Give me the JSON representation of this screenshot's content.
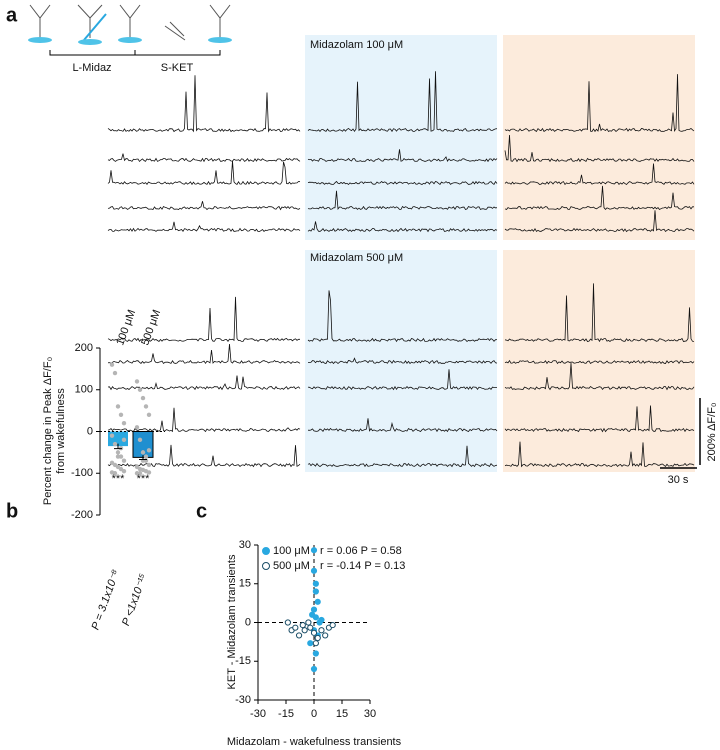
{
  "panel_labels": [
    "a",
    "b",
    "c"
  ],
  "panel_a": {
    "protocol": [
      "L-Midaz",
      "S-KET"
    ],
    "conditions": [
      "Midazolam 100 μM",
      "Midazolam 500 μM"
    ],
    "scale_y": "200% ΔF/F₀",
    "scale_x": "30 s"
  },
  "chart_data": [
    {
      "type": "bar",
      "ylabel": [
        "Percent change in Peak ΔF/F₀",
        "from wakefulness"
      ],
      "categories": [
        "100 μM",
        "500 μM"
      ],
      "values": [
        -35,
        -62
      ],
      "errors": [
        6,
        5
      ],
      "colors": [
        "#29a8e0",
        "#1f8fd0"
      ],
      "point_color": "#b5b5b5",
      "points": [
        [
          160,
          140,
          60,
          40,
          20,
          -10,
          -30,
          -50,
          -60,
          -70,
          -75,
          -80,
          -85,
          -90,
          -95,
          -98,
          -100,
          -60,
          -40,
          -20
        ],
        [
          120,
          100,
          80,
          60,
          40,
          10,
          -20,
          -50,
          -70,
          -80,
          -85,
          -90,
          -92,
          -95,
          -98,
          -100,
          -100,
          -70,
          -60,
          -45
        ]
      ],
      "annotations": [
        "***",
        "***"
      ],
      "p_values": [
        "P = 3.1x10⁻⁸",
        "P <1x10⁻¹⁵"
      ],
      "ylim": [
        -200,
        200
      ],
      "yticks": [
        -200,
        -100,
        0,
        100,
        200
      ],
      "zero_line": true
    },
    {
      "type": "scatter",
      "xlabel": "Midazolam - wakefulness transients",
      "ylabel": "KET - Midazolam transients",
      "series": [
        {
          "name": "100 μM",
          "stats": "r = 0.06  P = 0.58",
          "color": "#29a8e0",
          "filled": true,
          "x": [
            0,
            0,
            1,
            1,
            2,
            0,
            -1,
            1,
            3,
            0,
            2,
            -2,
            1,
            0,
            4
          ],
          "y": [
            28,
            20,
            15,
            12,
            8,
            5,
            3,
            2,
            0,
            -3,
            -5,
            -8,
            -12,
            -18,
            1
          ]
        },
        {
          "name": "500 μM",
          "stats": "r = -0.14 P = 0.13",
          "color": "#1a4d66",
          "filled": false,
          "x": [
            -12,
            -10,
            -8,
            -6,
            -5,
            -3,
            -2,
            0,
            2,
            4,
            6,
            8,
            10,
            -14,
            1
          ],
          "y": [
            -3,
            -2,
            -5,
            -1,
            -3,
            0,
            -2,
            -4,
            -6,
            -3,
            -5,
            -2,
            -1,
            0,
            -8
          ]
        }
      ],
      "xlim": [
        -30,
        30
      ],
      "xticks": [
        -30,
        -15,
        0,
        15,
        30
      ],
      "ylim": [
        -30,
        30
      ],
      "yticks": [
        -30,
        -15,
        0,
        15,
        30
      ],
      "zero_line": true
    }
  ]
}
